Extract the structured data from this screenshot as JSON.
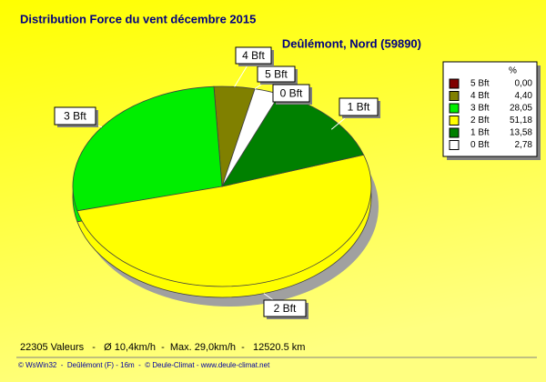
{
  "chart_data": {
    "type": "pie",
    "title": "Distribution Force du vent  décembre 2015",
    "subtitle": "Deûlémont, Nord (59890)",
    "legend_title": "%",
    "categories": [
      "5 Bft",
      "4 Bft",
      "3 Bft",
      "2 Bft",
      "1 Bft",
      "0 Bft"
    ],
    "values": [
      0.0,
      4.4,
      28.05,
      51.18,
      13.58,
      2.78
    ],
    "value_labels": [
      "0,00",
      "4,40",
      "28,05",
      "51,18",
      "13,58",
      "2,78"
    ],
    "colors": [
      "#800000",
      "#808000",
      "#00ee00",
      "#ffff00",
      "#008000",
      "#ffffff"
    ],
    "legend_position": "upper right",
    "footer": "22305 Valeurs   -   Ø 10,4km/h  -  Max. 29,0km/h  -   12520.5 km",
    "credit": "© WsWin32  -  Deûlémont (F) - 16m  -  © Deule-Climat - www.deule-climat.net"
  }
}
